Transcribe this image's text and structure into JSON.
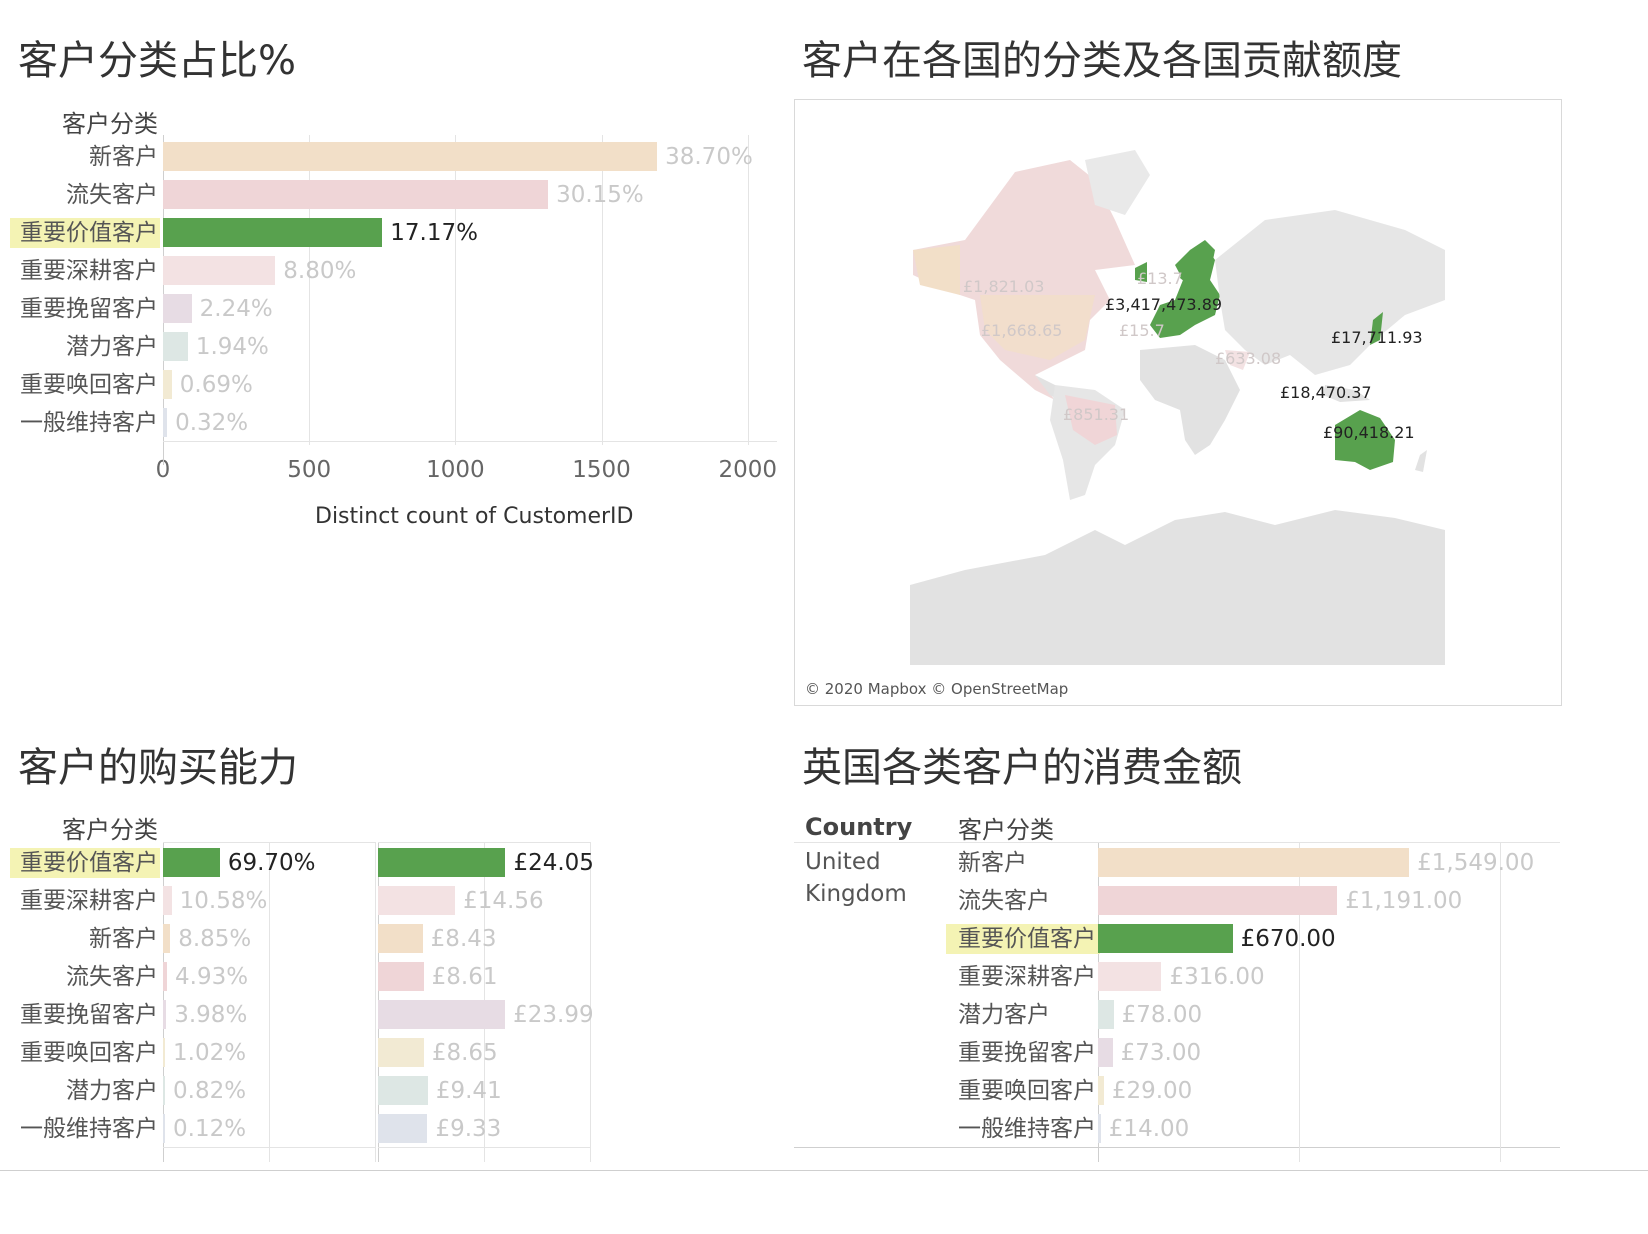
{
  "colors": {
    "highlight": "#58a14e",
    "highlight_label_bg": "#f4f3b4",
    "faded_text": "#c9c9c9"
  },
  "chart_data": [
    {
      "id": "pct",
      "type": "bar",
      "title": "客户分类占比%",
      "column_header": "客户分类",
      "xlabel": "Distinct count of CustomerID",
      "xlim": [
        0,
        2100
      ],
      "ticks": [
        "0",
        "500",
        "1000",
        "1500",
        "2000"
      ],
      "tick_values": [
        0,
        500,
        1000,
        1500,
        2000
      ],
      "categories": [
        "新客户",
        "流失客户",
        "重要价值客户",
        "重要深耕客户",
        "重要挽留客户",
        "潜力客户",
        "重要唤回客户",
        "一般维持客户"
      ],
      "values": [
        1690,
        1317,
        750,
        384,
        98,
        85,
        30,
        14
      ],
      "labels": [
        "38.70%",
        "30.15%",
        "17.17%",
        "8.80%",
        "2.24%",
        "1.94%",
        "0.69%",
        "0.32%"
      ],
      "colors": [
        "#f2dfc8",
        "#efd5d7",
        "#58a14e",
        "#f3e2e3",
        "#e7dce4",
        "#dde7e4",
        "#f2ead3",
        "#dfe3eb"
      ],
      "highlight_index": 2
    },
    {
      "id": "buy",
      "type": "bar",
      "title": "客户的购买能力",
      "column_header": "客户分类",
      "categories": [
        "重要价值客户",
        "重要深耕客户",
        "新客户",
        "流失客户",
        "重要挽留客户",
        "重要唤回客户",
        "潜力客户",
        "一般维持客户"
      ],
      "highlight_index": 0,
      "colors": [
        "#58a14e",
        "#f3e2e3",
        "#f2dfc8",
        "#efd5d7",
        "#e7dce4",
        "#f2ead3",
        "#dde7e4",
        "#dfe3eb"
      ],
      "series": [
        {
          "values": [
            69.7,
            10.58,
            8.85,
            4.93,
            3.98,
            1.02,
            0.82,
            0.12
          ],
          "labels": [
            "69.70%",
            "10.58%",
            "8.85%",
            "4.93%",
            "3.98%",
            "1.02%",
            "0.82%",
            "0.12%"
          ],
          "xlim": [
            0,
            260
          ]
        },
        {
          "values": [
            24.05,
            14.56,
            8.43,
            8.61,
            23.99,
            8.65,
            9.41,
            9.33
          ],
          "labels": [
            "£24.05",
            "£14.56",
            "£8.43",
            "£8.61",
            "£23.99",
            "£8.65",
            "£9.41",
            "£9.33"
          ],
          "xlim": [
            0,
            40
          ]
        }
      ]
    },
    {
      "id": "uk",
      "type": "bar",
      "title": "英国各类客户的消费金额",
      "country_header": "Country",
      "column_header": "客户分类",
      "country_value": [
        "United",
        "Kingdom"
      ],
      "xlim": [
        0,
        2300
      ],
      "categories": [
        "新客户",
        "流失客户",
        "重要价值客户",
        "重要深耕客户",
        "潜力客户",
        "重要挽留客户",
        "重要唤回客户",
        "一般维持客户"
      ],
      "values": [
        1549,
        1191,
        670,
        316,
        78,
        73,
        29,
        14
      ],
      "labels": [
        "£1,549.00",
        "£1,191.00",
        "£670.00",
        "£316.00",
        "£78.00",
        "£73.00",
        "£29.00",
        "£14.00"
      ],
      "colors": [
        "#f2dfc8",
        "#efd5d7",
        "#58a14e",
        "#f3e2e3",
        "#dde7e4",
        "#e7dce4",
        "#f2ead3",
        "#dfe3eb"
      ],
      "highlight_index": 2
    }
  ],
  "map": {
    "title": "客户在各国的分类及各国贡献额度",
    "attribution": "© 2020 Mapbox © OpenStreetMap",
    "labels_highlighted": [
      "£3,417,473.89",
      "£17,711.93",
      "£18,470.37",
      "£90,418.21"
    ],
    "labels_faded": [
      "£1,821.03",
      "£1,668.65",
      "£851.31",
      "£633.08",
      "£13.7",
      "£15.7"
    ]
  }
}
